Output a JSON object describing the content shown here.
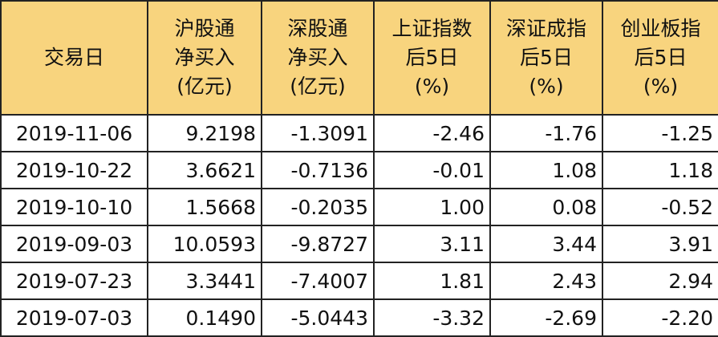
{
  "table": {
    "header": [
      [
        "交易日"
      ],
      [
        "沪股通",
        "净买入",
        "(亿元)"
      ],
      [
        "深股通",
        "净买入",
        "(亿元)"
      ],
      [
        "上证指数",
        "后5日",
        "(%)"
      ],
      [
        "深证成指",
        "后5日",
        "(%)"
      ],
      [
        "创业板指",
        "后5日",
        "(%)"
      ]
    ],
    "rows": [
      [
        "2019-11-06",
        "9.2198",
        "-1.3091",
        "-2.46",
        "-1.76",
        "-1.25"
      ],
      [
        "2019-10-22",
        "3.6621",
        "-0.7136",
        "-0.01",
        "1.08",
        "1.18"
      ],
      [
        "2019-10-10",
        "1.5668",
        "-0.2035",
        "1.00",
        "0.08",
        "-0.52"
      ],
      [
        "2019-09-03",
        "10.0593",
        "-9.8727",
        "3.11",
        "3.44",
        "3.91"
      ],
      [
        "2019-07-23",
        "3.3441",
        "-7.4007",
        "1.81",
        "2.43",
        "2.94"
      ],
      [
        "2019-07-03",
        "0.1490",
        "-5.0443",
        "-3.32",
        "-2.69",
        "-2.20"
      ]
    ]
  }
}
